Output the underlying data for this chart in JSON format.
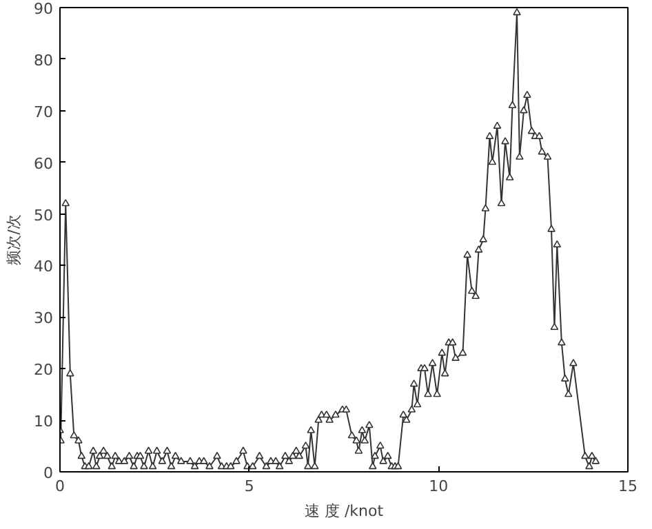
{
  "chart_data": {
    "type": "line",
    "xlabel": "速 度 /knot",
    "ylabel": "频次/次",
    "xlim": [
      0,
      15
    ],
    "ylim": [
      0,
      90
    ],
    "xticks": [
      0,
      5,
      10,
      15
    ],
    "yticks": [
      0,
      10,
      20,
      30,
      40,
      50,
      60,
      70,
      80,
      90
    ],
    "marker": "triangle",
    "line_style": "solid",
    "series": [
      {
        "color": "#333333",
        "x": [
          0,
          0.02,
          0.15,
          0.27,
          0.37,
          0.49,
          0.57,
          0.66,
          0.76,
          0.88,
          0.96,
          1.05,
          1.15,
          1.25,
          1.37,
          1.46,
          1.56,
          1.7,
          1.83,
          1.95,
          2.04,
          2.12,
          2.22,
          2.34,
          2.45,
          2.56,
          2.7,
          2.83,
          2.94,
          3.05,
          3.2,
          3.44,
          3.56,
          3.68,
          3.8,
          3.95,
          4.15,
          4.27,
          4.4,
          4.51,
          4.66,
          4.84,
          4.95,
          5.09,
          5.27,
          5.45,
          5.57,
          5.7,
          5.8,
          5.95,
          6.05,
          6.15,
          6.24,
          6.32,
          6.49,
          6.55,
          6.63,
          6.73,
          6.83,
          6.91,
          7.04,
          7.12,
          7.28,
          7.46,
          7.56,
          7.71,
          7.83,
          7.89,
          7.98,
          8.05,
          8.17,
          8.26,
          8.32,
          8.46,
          8.54,
          8.66,
          8.76,
          8.85,
          8.93,
          9.07,
          9.15,
          9.29,
          9.35,
          9.44,
          9.54,
          9.63,
          9.72,
          9.84,
          9.96,
          10.09,
          10.17,
          10.27,
          10.37,
          10.45,
          10.64,
          10.76,
          10.88,
          10.98,
          11.06,
          11.18,
          11.24,
          11.35,
          11.42,
          11.55,
          11.66,
          11.76,
          11.88,
          11.95,
          12.07,
          12.14,
          12.25,
          12.34,
          12.46,
          12.55,
          12.66,
          12.73,
          12.88,
          12.98,
          13.06,
          13.13,
          13.25,
          13.34,
          13.43,
          13.56,
          13.87,
          13.98,
          14.05,
          14.15
        ],
        "values": [
          8,
          6,
          52,
          19,
          7,
          6,
          3,
          1,
          1,
          4,
          1,
          3,
          4,
          3,
          1,
          3,
          2,
          2,
          3,
          1,
          3,
          3,
          1,
          4,
          1,
          4,
          2,
          4,
          1,
          3,
          2,
          2,
          1,
          2,
          2,
          1,
          3,
          1,
          1,
          1,
          2,
          4,
          1,
          1,
          3,
          1,
          2,
          2,
          1,
          3,
          2,
          3,
          4,
          3,
          5,
          1,
          8,
          1,
          10,
          11,
          11,
          10,
          11,
          12,
          12,
          7,
          6,
          4,
          8,
          6,
          9,
          1,
          3,
          5,
          2,
          3,
          1,
          1,
          1,
          11,
          10,
          12,
          17,
          13,
          20,
          20,
          15,
          21,
          15,
          23,
          19,
          25,
          25,
          22,
          23,
          42,
          35,
          34,
          43,
          45,
          51,
          65,
          60,
          67,
          52,
          64,
          57,
          71,
          89,
          61,
          70,
          73,
          66,
          65,
          65,
          62,
          61,
          47,
          28,
          44,
          25,
          18,
          15,
          21,
          3,
          1,
          3,
          2
        ]
      }
    ]
  }
}
